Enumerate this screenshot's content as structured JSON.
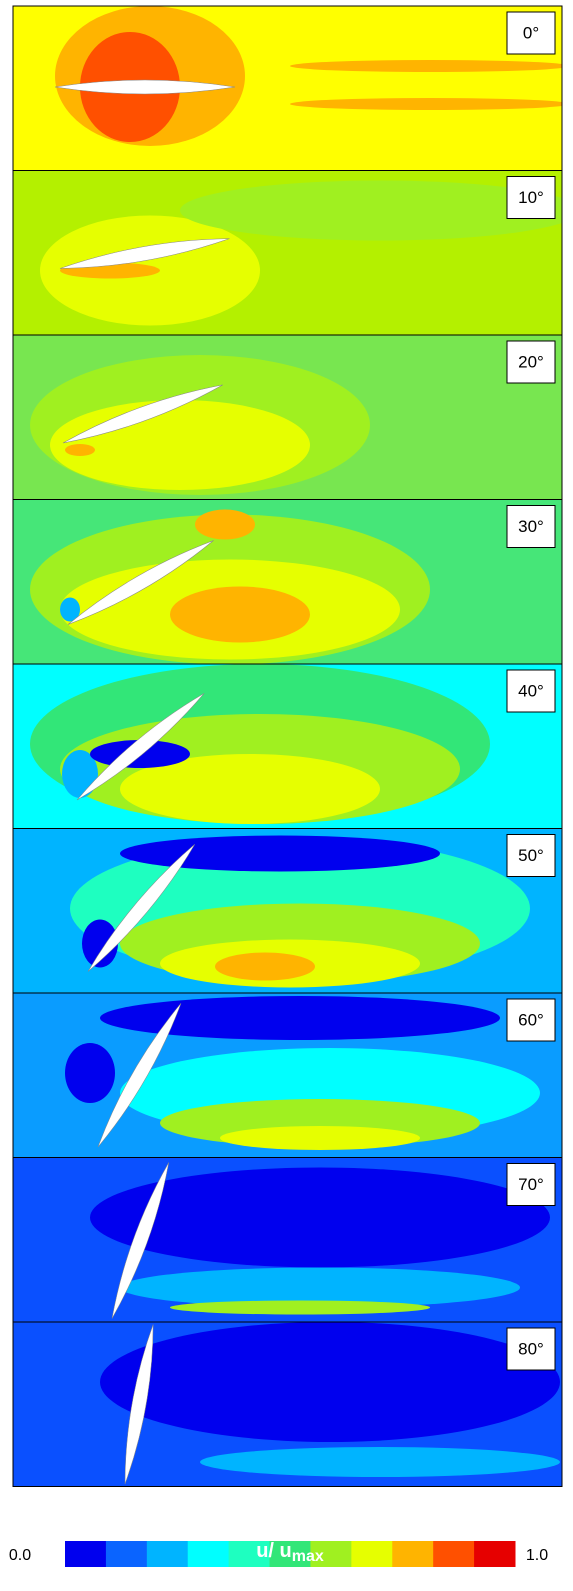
{
  "panels": [
    {
      "label": "0°",
      "background": "#ffff00"
    },
    {
      "label": "10°",
      "background": "#b4f000"
    },
    {
      "label": "20°",
      "background": "#78e650"
    },
    {
      "label": "30°",
      "background": "#46e678"
    },
    {
      "label": "40°",
      "background": "#00ffff"
    },
    {
      "label": "50°",
      "background": "#00b4ff"
    },
    {
      "label": "60°",
      "background": "#0a9cff"
    },
    {
      "label": "70°",
      "background": "#0a50ff"
    },
    {
      "label": "80°",
      "background": "#0a50ff"
    }
  ],
  "colorbar": {
    "title": "u/ u",
    "title_sub": "max",
    "min_label": "0.0",
    "max_label": "1.0",
    "colors": [
      "#0000ee",
      "#0a64ff",
      "#00b4ff",
      "#00ffff",
      "#1effc0",
      "#32e678",
      "#a0f020",
      "#e6ff00",
      "#ffb400",
      "#ff5000",
      "#e60000"
    ]
  }
}
